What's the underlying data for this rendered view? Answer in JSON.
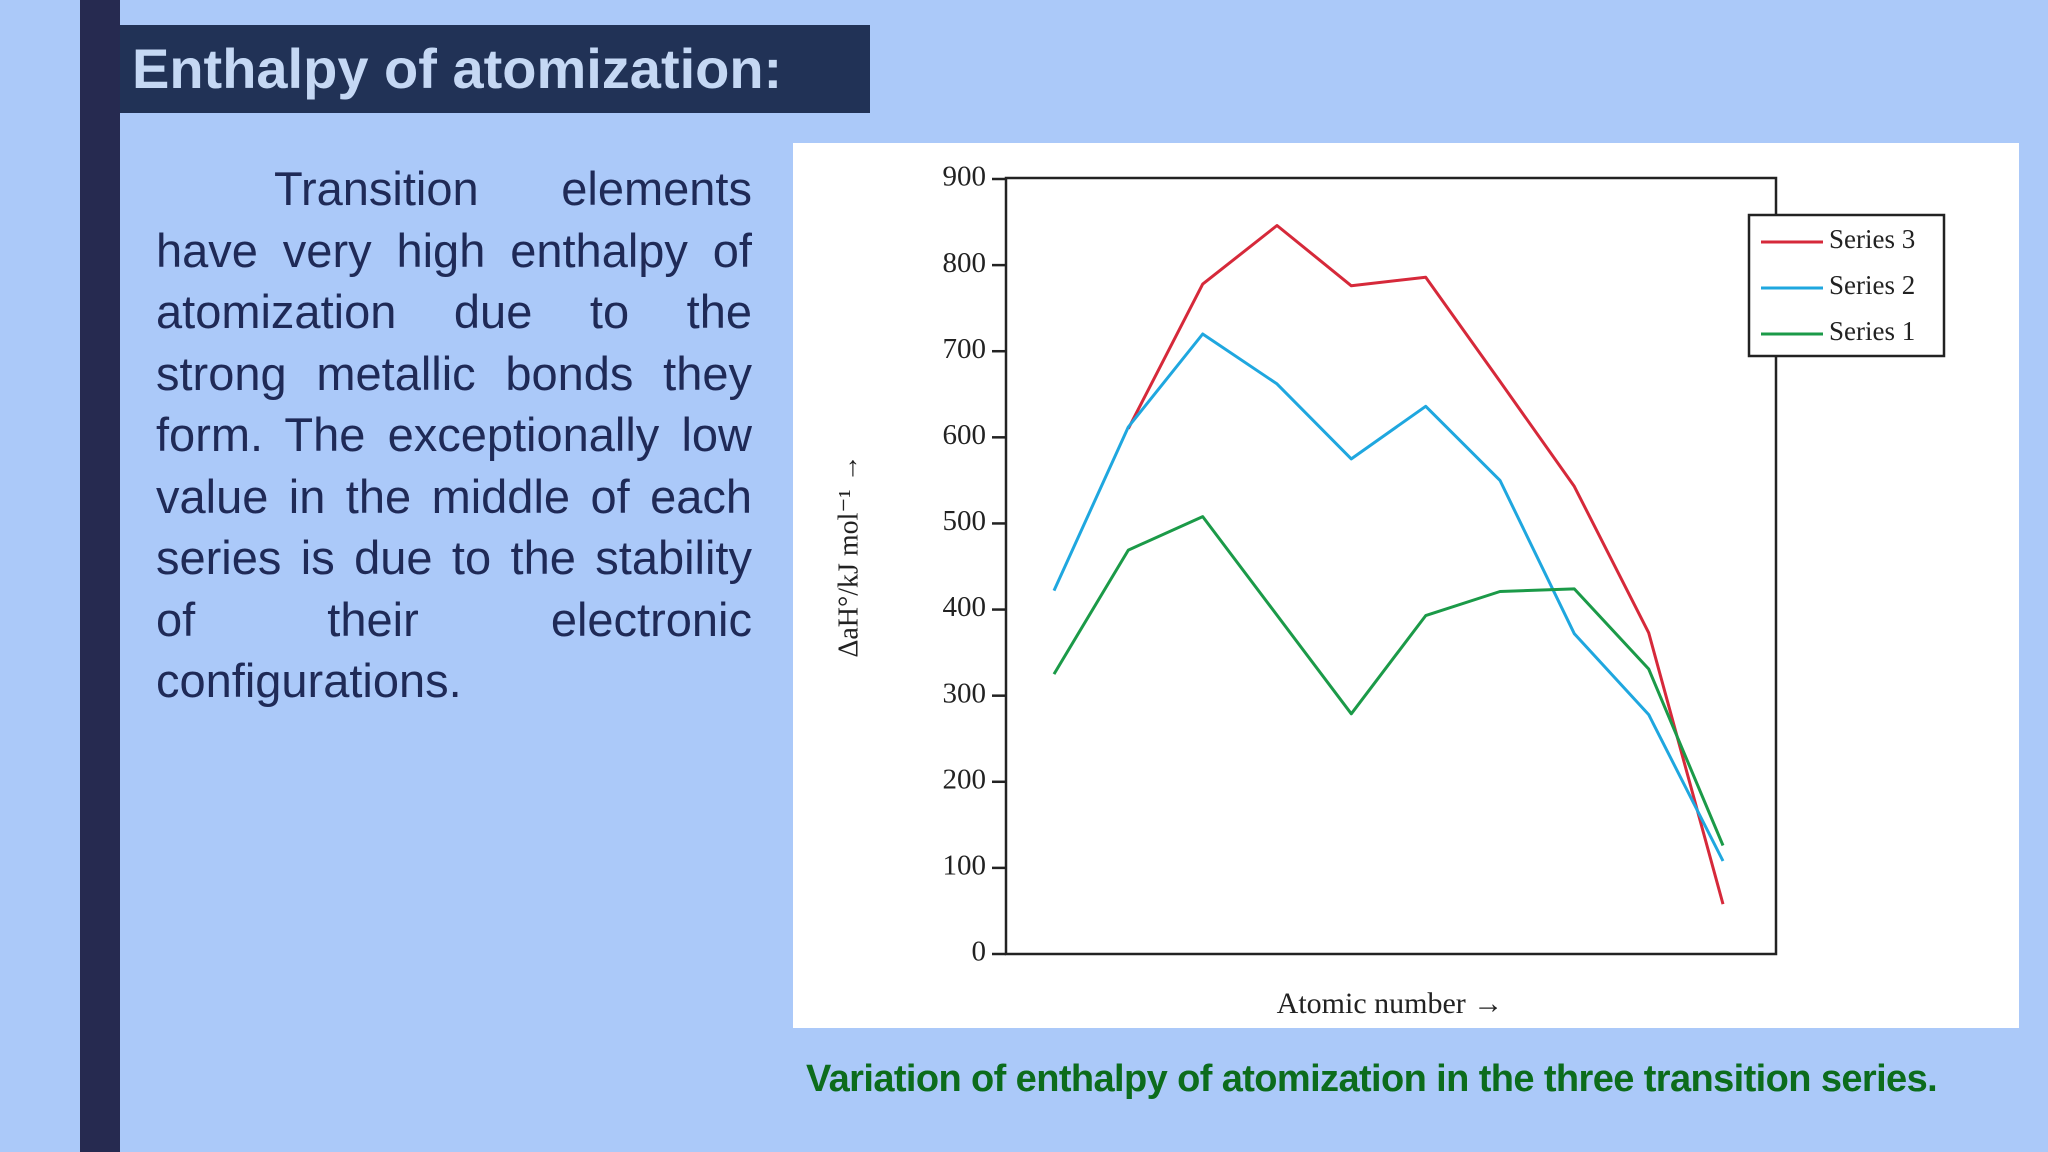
{
  "slide": {
    "title": "Enthalpy of atomization:",
    "body": "Transition elements have very high enthalpy of atomization due to the strong metallic bonds they form. The exceptionally low value in the middle of each series is due to the stability of their electronic configurations.",
    "caption": "Variation of enthalpy of atomization in the three transition series."
  },
  "chart_data": {
    "type": "line",
    "xlabel": "Atomic number →",
    "ylabel": "ΔaH°/kJ mol⁻¹ →",
    "ylim": [
      0,
      900
    ],
    "yticks": [
      0,
      100,
      200,
      300,
      400,
      500,
      600,
      700,
      800,
      900
    ],
    "x_ticks_visible": false,
    "grid": false,
    "legend_position": "top-right",
    "series": [
      {
        "name": "Series 3",
        "color": "#d6293a",
        "values": [
          null,
          610,
          778,
          846,
          776,
          786,
          665,
          543,
          373,
          58
        ]
      },
      {
        "name": "Series 2",
        "color": "#1fa7df",
        "values": [
          422,
          612,
          720,
          662,
          575,
          636,
          550,
          372,
          278,
          108
        ]
      },
      {
        "name": "Series 1",
        "color": "#1b9a48",
        "values": [
          325,
          469,
          508,
          null,
          279,
          393,
          421,
          424,
          331,
          126
        ]
      }
    ]
  }
}
